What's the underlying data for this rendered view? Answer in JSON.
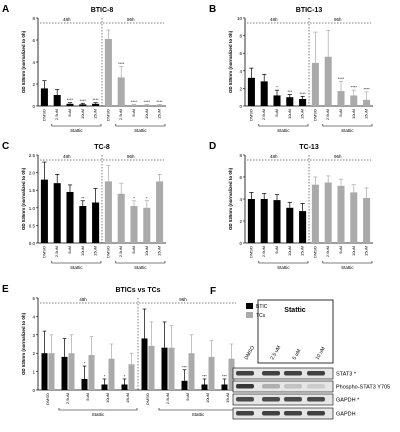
{
  "figure": {
    "y_axis_label": "OD 535nm (normalized to 0h)",
    "time_labels": [
      "48h",
      "96h"
    ],
    "group_label": "Statttic"
  },
  "chart_data": [
    {
      "panel": "A",
      "title": "BTIC-8",
      "type": "bar",
      "ylim": [
        0,
        8
      ],
      "yticks": [
        "0",
        "2",
        "4",
        "6",
        "8"
      ],
      "categories": [
        "DMSO",
        "2.5uM",
        "5uM",
        "10uM",
        "15uM",
        "DMSO",
        "2.5uM",
        "5uM",
        "10uM",
        "15uM"
      ],
      "series": [
        {
          "values": [
            1.6,
            1.0,
            0.2,
            0.15,
            0.2,
            6.1,
            2.6,
            0.1,
            0.1,
            0.1
          ]
        }
      ],
      "errors": [
        0.7,
        0.5,
        0.1,
        0.1,
        0.1,
        0.8,
        1.0,
        0.05,
        0.05,
        0.05
      ],
      "significance": [
        "",
        "",
        "****",
        "****",
        "****",
        "",
        "****",
        "****",
        "****",
        "****"
      ],
      "colors": [
        "#000000",
        "#000000",
        "#000000",
        "#000000",
        "#000000",
        "#aaaaaa",
        "#aaaaaa",
        "#aaaaaa",
        "#aaaaaa",
        "#aaaaaa"
      ],
      "group_labels": [
        "Stattic",
        "Stattic"
      ]
    },
    {
      "panel": "B",
      "title": "BTIC-13",
      "type": "bar",
      "ylim": [
        0,
        10
      ],
      "yticks": [
        "0",
        "2",
        "4",
        "6",
        "8",
        "10"
      ],
      "categories": [
        "DMSO",
        "2.5uM",
        "5uM",
        "10uM",
        "15uM",
        "DMSO",
        "2.5uM",
        "5uM",
        "10uM",
        "15uM"
      ],
      "series": [
        {
          "values": [
            3.2,
            2.8,
            1.2,
            1.0,
            0.8,
            4.9,
            5.6,
            1.7,
            1.2,
            0.7
          ]
        }
      ],
      "errors": [
        1.1,
        0.8,
        0.6,
        0.3,
        0.3,
        3.5,
        3.0,
        1.1,
        0.6,
        0.9
      ],
      "significance": [
        "",
        "",
        "*",
        "***",
        "****",
        "",
        "",
        "****",
        "****",
        "****"
      ],
      "colors": [
        "#000000",
        "#000000",
        "#000000",
        "#000000",
        "#000000",
        "#aaaaaa",
        "#aaaaaa",
        "#aaaaaa",
        "#aaaaaa",
        "#aaaaaa"
      ],
      "group_labels": [
        "Stattic",
        "Stattic"
      ]
    },
    {
      "panel": "C",
      "title": "TC-8",
      "type": "bar",
      "ylim": [
        0,
        2.5
      ],
      "yticks": [
        "0.0",
        "0.5",
        "1.0",
        "1.5",
        "2.0",
        "2.5"
      ],
      "categories": [
        "DMSO",
        "2.5uM",
        "5uM",
        "10uM",
        "15uM",
        "DMSO",
        "2.5uM",
        "5uM",
        "10uM",
        "15uM"
      ],
      "series": [
        {
          "values": [
            1.8,
            1.7,
            1.45,
            1.05,
            1.15,
            1.75,
            1.4,
            1.05,
            1.0,
            1.75
          ]
        }
      ],
      "errors": [
        0.5,
        0.25,
        0.2,
        0.15,
        0.4,
        0.45,
        0.3,
        0.15,
        0.2,
        0.2
      ],
      "significance": [
        "",
        "",
        "",
        "**",
        "",
        "",
        "",
        "*",
        "*",
        ""
      ],
      "colors": [
        "#000000",
        "#000000",
        "#000000",
        "#000000",
        "#000000",
        "#aaaaaa",
        "#aaaaaa",
        "#aaaaaa",
        "#aaaaaa",
        "#aaaaaa"
      ],
      "group_labels": [
        "Stattic",
        "Stattic"
      ]
    },
    {
      "panel": "D",
      "title": "TC-13",
      "type": "bar",
      "ylim": [
        0,
        8
      ],
      "yticks": [
        "0",
        "2",
        "4",
        "6",
        "8"
      ],
      "categories": [
        "DMSO",
        "2.5uM",
        "5uM",
        "10uM",
        "15uM",
        "DMSO",
        "2.5uM",
        "5uM",
        "10uM",
        "15uM"
      ],
      "series": [
        {
          "values": [
            4.0,
            4.0,
            3.9,
            3.2,
            2.9,
            5.3,
            5.5,
            5.2,
            4.6,
            4.1
          ]
        }
      ],
      "errors": [
        0.6,
        0.5,
        0.5,
        0.5,
        0.7,
        0.7,
        0.6,
        0.6,
        0.7,
        0.9
      ],
      "significance": [
        "",
        "",
        "",
        "",
        "",
        "",
        "",
        "",
        "",
        ""
      ],
      "colors": [
        "#000000",
        "#000000",
        "#000000",
        "#000000",
        "#000000",
        "#aaaaaa",
        "#aaaaaa",
        "#aaaaaa",
        "#aaaaaa",
        "#aaaaaa"
      ],
      "group_labels": [
        "Stattic",
        "Stattic"
      ]
    },
    {
      "panel": "E",
      "title": "BTICs vs TCs",
      "type": "bar",
      "ylim": [
        0,
        5
      ],
      "yticks": [
        "0",
        "1",
        "2",
        "3",
        "4",
        "5"
      ],
      "categories": [
        "DMSO",
        "2.5uM",
        "5uM",
        "10uM",
        "15uM",
        "DMSO",
        "2.5uM",
        "5uM",
        "10uM",
        "15uM"
      ],
      "series": [
        {
          "name": "BTIC",
          "color": "#000000",
          "values": [
            2.0,
            1.8,
            0.6,
            0.3,
            0.3,
            2.8,
            2.3,
            0.5,
            0.3,
            0.3
          ]
        },
        {
          "name": "TCs",
          "color": "#aaaaaa",
          "values": [
            2.0,
            2.0,
            1.9,
            1.7,
            1.4,
            2.4,
            2.3,
            2.0,
            1.8,
            1.7
          ]
        }
      ],
      "errors": [
        [
          1.2,
          1.0,
          0.7,
          0.3,
          0.3,
          1.6,
          1.4,
          0.6,
          0.3,
          0.3
        ],
        [
          1.0,
          1.0,
          1.0,
          0.8,
          0.6,
          1.3,
          1.2,
          1.0,
          0.9,
          0.8
        ]
      ],
      "significance": [
        [
          "",
          "",
          "*",
          "*",
          "*",
          "",
          "",
          "***",
          "***",
          "***"
        ],
        [
          "",
          "",
          "",
          "",
          "",
          "",
          "",
          "",
          "",
          ""
        ]
      ],
      "legend_position": "top-right",
      "group_labels": [
        "Stattic",
        "Stattic"
      ]
    }
  ],
  "panel_f": {
    "treatment_label": "Stattic",
    "lanes": [
      "DMSO",
      "2.5 uM",
      "5 uM",
      "10 uM"
    ],
    "rows": [
      {
        "label": "STAT3 *",
        "intensity": [
          0.85,
          0.85,
          0.85,
          0.85
        ]
      },
      {
        "label": "Phospho-STAT3 Y705",
        "intensity": [
          0.9,
          0.3,
          0.2,
          0.15
        ]
      },
      {
        "label": "GAPDH *",
        "intensity": [
          0.8,
          0.8,
          0.8,
          0.8
        ]
      },
      {
        "label": "GAPDH",
        "intensity": [
          0.85,
          0.85,
          0.85,
          0.85
        ]
      }
    ]
  }
}
